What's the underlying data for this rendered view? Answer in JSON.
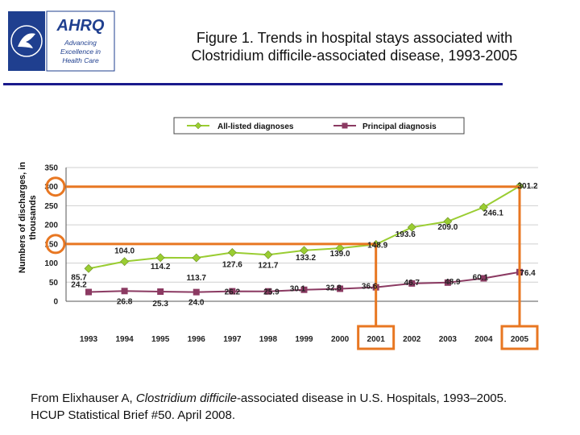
{
  "header": {
    "logo_text": "AHRQ",
    "logo_tagline": [
      "Advancing",
      "Excellence in",
      "Health Care"
    ],
    "title_line1": "Figure 1. Trends in hospital stays associated with",
    "title_line2": "Clostridium difficile-associated disease, 1993-2005"
  },
  "chart_data": {
    "type": "line",
    "title": "Figure 1. Trends in hospital stays associated with Clostridium difficile-associated disease, 1993-2005",
    "ylabel": "Numbers of discharges, in thousands",
    "xlabel": "",
    "ylim": [
      0,
      350
    ],
    "yticks": [
      0,
      50,
      100,
      150,
      200,
      250,
      300,
      350
    ],
    "x": [
      "1993",
      "1994",
      "1995",
      "1996",
      "1997",
      "1998",
      "1999",
      "2000",
      "2001",
      "2002",
      "2003",
      "2004",
      "2005"
    ],
    "grid": true,
    "legend": "top",
    "series": [
      {
        "name": "All-listed diagnoses",
        "color": "#9acd32",
        "marker": "diamond",
        "values": [
          85.7,
          104.0,
          114.2,
          113.7,
          127.6,
          121.7,
          133.2,
          139.0,
          148.9,
          193.6,
          209.0,
          246.1,
          301.2
        ],
        "labels": [
          "85.7",
          "104.0",
          "114.2",
          "113.7",
          "127.6",
          "121.7",
          "133.2",
          "139.0",
          "148.9",
          "193.6",
          "209.0",
          "246.1",
          "301.2"
        ]
      },
      {
        "name": "Principal diagnosis",
        "color": "#8b3a62",
        "marker": "square",
        "values": [
          24.2,
          26.8,
          25.3,
          24.0,
          26.2,
          25.9,
          30.1,
          32.8,
          36.6,
          46.7,
          48.9,
          60.1,
          76.4
        ],
        "labels": [
          "24.2",
          "26.8",
          "25.3",
          "24.0",
          "26.2",
          "25.9",
          "30.1",
          "32.8",
          "36.6",
          "46.7",
          "48.9",
          "60.1",
          "76.4"
        ]
      }
    ],
    "highlight": {
      "color": "#e87722",
      "y_levels": [
        150,
        300
      ],
      "x_years": [
        "2001",
        "2005"
      ]
    }
  },
  "citation": {
    "prefix": "From Elixhauser A, ",
    "italic": "Clostridium difficile",
    "suffix": "-associated disease in U.S. Hospitals, 1993–2005.",
    "line2": "HCUP Statistical Brief #50. April 2008."
  }
}
